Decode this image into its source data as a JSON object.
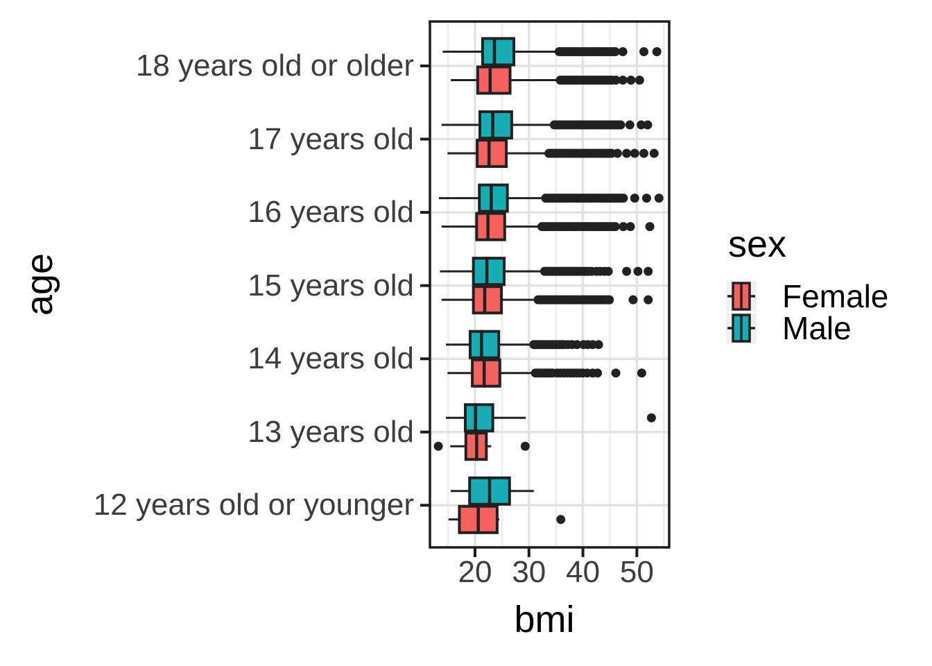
{
  "colors": {
    "female": "#F4615E",
    "male": "#16ADB4",
    "stroke": "#212121",
    "outlier": "#212121",
    "grid_major": "#e2e2e2",
    "grid_minor": "#ececec",
    "panel_border": "#1c1c1c",
    "axis_text": "#3d3d3d",
    "title_text": "#000000",
    "background": "#ffffff",
    "legend_key_bg": "#f0f0f0"
  },
  "chart_data": {
    "type": "boxplot",
    "orientation": "horizontal",
    "title": "",
    "xlabel": "bmi",
    "ylabel": "age",
    "x_ticks": [
      20,
      30,
      40,
      50
    ],
    "x_minor_gridlines": [
      15,
      25,
      35,
      45,
      55
    ],
    "xlim": [
      11.6,
      56.0
    ],
    "grid": true,
    "legend": {
      "title": "sex",
      "position": "right",
      "entries": [
        {
          "label": "Female",
          "color": "#F4615E"
        },
        {
          "label": "Male",
          "color": "#16ADB4"
        }
      ]
    },
    "categories": [
      "18 years old or older",
      "17 years old",
      "16 years old",
      "15 years old",
      "14 years old",
      "13 years old",
      "12 years old or younger"
    ],
    "groups": [
      {
        "category": "18 years old or older",
        "boxes": [
          {
            "sex": "Male",
            "min": 14.0,
            "q1": 21.4,
            "median": 23.6,
            "q3": 27.2,
            "max": 35.6,
            "outliers": [
              35.6,
              36.0,
              36.4,
              36.8,
              37.2,
              37.6,
              38.0,
              38.4,
              38.8,
              39.2,
              39.6,
              40.0,
              40.4,
              40.8,
              41.2,
              41.6,
              42.0,
              42.4,
              42.8,
              43.2,
              43.6,
              44.0,
              44.4,
              44.8,
              45.2,
              45.6,
              46.0,
              47.4,
              51.3,
              53.7
            ]
          },
          {
            "sex": "Female",
            "min": 15.5,
            "q1": 20.5,
            "median": 22.8,
            "q3": 26.5,
            "max": 35.6,
            "outliers": [
              35.8,
              36.2,
              36.6,
              37.0,
              37.4,
              37.8,
              38.2,
              38.6,
              39.0,
              39.4,
              39.8,
              40.2,
              40.6,
              41.0,
              41.4,
              41.8,
              42.2,
              42.6,
              43.0,
              43.4,
              43.8,
              44.2,
              44.6,
              45.0,
              45.4,
              46.1,
              47.4,
              48.9,
              50.5
            ]
          }
        ]
      },
      {
        "category": "17 years old",
        "boxes": [
          {
            "sex": "Male",
            "min": 13.8,
            "q1": 20.9,
            "median": 23.3,
            "q3": 26.8,
            "max": 34.5,
            "outliers": [
              34.7,
              35.1,
              35.5,
              35.9,
              36.3,
              36.7,
              37.1,
              37.5,
              37.9,
              38.3,
              38.7,
              39.1,
              39.5,
              39.9,
              40.3,
              40.7,
              41.1,
              41.5,
              41.9,
              42.3,
              42.7,
              43.1,
              43.5,
              43.9,
              44.3,
              44.7,
              45.1,
              45.5,
              45.9,
              46.3,
              46.7,
              47.0,
              48.7,
              50.8,
              52.0
            ]
          },
          {
            "sex": "Female",
            "min": 14.9,
            "q1": 20.4,
            "median": 22.6,
            "q3": 25.8,
            "max": 33.5,
            "outliers": [
              33.7,
              34.1,
              34.5,
              34.9,
              35.3,
              35.7,
              36.1,
              36.5,
              36.9,
              37.3,
              37.7,
              38.1,
              38.5,
              38.9,
              39.3,
              39.7,
              40.1,
              40.5,
              40.9,
              41.3,
              41.7,
              42.1,
              42.5,
              42.9,
              43.3,
              43.7,
              44.1,
              44.5,
              44.9,
              45.3,
              46.4,
              48.1,
              49.6,
              51.3,
              53.2
            ]
          }
        ]
      },
      {
        "category": "16 years old",
        "boxes": [
          {
            "sex": "Male",
            "min": 13.3,
            "q1": 20.8,
            "median": 23.0,
            "q3": 26.0,
            "max": 32.9,
            "outliers": [
              33.1,
              33.5,
              33.9,
              34.3,
              34.7,
              35.1,
              35.5,
              35.9,
              36.3,
              36.7,
              37.1,
              37.5,
              37.9,
              38.3,
              38.7,
              39.1,
              39.5,
              39.9,
              40.3,
              40.7,
              41.1,
              41.5,
              41.9,
              42.3,
              42.7,
              43.1,
              43.5,
              43.9,
              44.3,
              44.7,
              45.1,
              45.5,
              45.9,
              46.3,
              46.7,
              47.1,
              47.5,
              49.6,
              51.8,
              54.1
            ]
          },
          {
            "sex": "Female",
            "min": 13.8,
            "q1": 20.3,
            "median": 22.4,
            "q3": 25.5,
            "max": 32.2,
            "outliers": [
              32.4,
              32.8,
              33.2,
              33.6,
              34.0,
              34.4,
              34.8,
              35.2,
              35.6,
              36.0,
              36.4,
              36.8,
              37.2,
              37.6,
              38.0,
              38.4,
              38.8,
              39.2,
              39.6,
              40.0,
              40.4,
              40.8,
              41.2,
              41.6,
              42.0,
              42.4,
              42.8,
              43.2,
              43.6,
              44.0,
              44.4,
              44.8,
              45.2,
              45.6,
              46.0,
              47.5,
              48.8,
              52.4
            ]
          }
        ]
      },
      {
        "category": "15 years old",
        "boxes": [
          {
            "sex": "Male",
            "min": 13.5,
            "q1": 19.7,
            "median": 22.2,
            "q3": 25.4,
            "max": 32.6,
            "outliers": [
              32.9,
              33.3,
              33.7,
              34.1,
              34.5,
              34.9,
              35.3,
              35.7,
              36.1,
              36.5,
              36.9,
              37.3,
              37.7,
              38.1,
              38.5,
              38.9,
              39.3,
              39.7,
              40.1,
              40.5,
              41.0,
              41.6,
              42.5,
              43.2,
              44.0,
              44.7,
              48.1,
              50.2,
              52.1
            ]
          },
          {
            "sex": "Female",
            "min": 13.8,
            "q1": 19.7,
            "median": 21.8,
            "q3": 24.9,
            "max": 31.5,
            "outliers": [
              31.7,
              32.1,
              32.5,
              32.9,
              33.3,
              33.7,
              34.1,
              34.5,
              34.9,
              35.3,
              35.7,
              36.1,
              36.5,
              36.9,
              37.3,
              37.7,
              38.1,
              38.5,
              38.9,
              39.3,
              39.7,
              40.1,
              40.5,
              40.9,
              41.3,
              41.7,
              42.1,
              42.5,
              42.9,
              43.3,
              43.7,
              44.1,
              44.5,
              44.9,
              49.3,
              52.1
            ]
          }
        ]
      },
      {
        "category": "14 years old",
        "boxes": [
          {
            "sex": "Male",
            "min": 14.6,
            "q1": 19.1,
            "median": 21.2,
            "q3": 24.4,
            "max": 30.6,
            "outliers": [
              30.9,
              31.3,
              31.7,
              32.1,
              32.5,
              32.9,
              33.3,
              33.7,
              34.1,
              34.5,
              34.9,
              35.3,
              35.7,
              36.1,
              36.5,
              37.2,
              38.0,
              38.9,
              40.1,
              40.9,
              41.8,
              42.9
            ]
          },
          {
            "sex": "Female",
            "min": 14.9,
            "q1": 19.5,
            "median": 21.7,
            "q3": 24.6,
            "max": 31.0,
            "outliers": [
              31.2,
              31.6,
              32.0,
              32.4,
              32.8,
              33.2,
              33.6,
              34.0,
              34.4,
              35.2,
              35.8,
              36.4,
              37.0,
              37.6,
              38.2,
              38.8,
              39.4,
              40.0,
              40.8,
              41.8,
              42.7,
              46.1,
              50.9
            ]
          }
        ]
      },
      {
        "category": "13 years old",
        "boxes": [
          {
            "sex": "Male",
            "min": 14.6,
            "q1": 18.2,
            "median": 20.1,
            "q3": 23.3,
            "max": 29.4,
            "outliers": [
              52.7
            ]
          },
          {
            "sex": "Female",
            "min": 15.4,
            "q1": 18.3,
            "median": 20.3,
            "q3": 22.1,
            "max": 23.0,
            "outliers": [
              13.2,
              29.3
            ]
          }
        ]
      },
      {
        "category": "12 years old or younger",
        "boxes": [
          {
            "sex": "Male",
            "min": 15.5,
            "q1": 19.0,
            "median": 22.7,
            "q3": 26.4,
            "max": 30.9,
            "outliers": []
          },
          {
            "sex": "Female",
            "min": 15.1,
            "q1": 17.1,
            "median": 20.6,
            "q3": 24.1,
            "max": 24.5,
            "outliers": [
              35.9
            ]
          }
        ]
      }
    ]
  }
}
